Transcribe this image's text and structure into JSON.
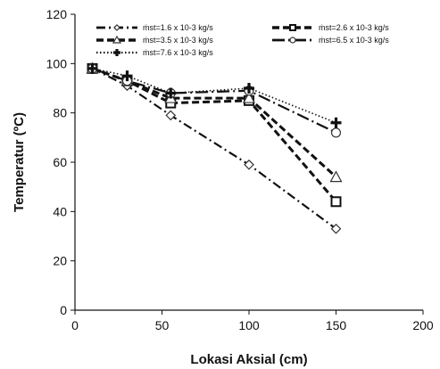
{
  "chart_data": {
    "type": "line",
    "title": "",
    "xlabel": "Lokasi Aksial (cm)",
    "ylabel": "Temperatur  (ºC)",
    "xlim": [
      0,
      200
    ],
    "ylim": [
      0,
      120
    ],
    "x_ticks": [
      0,
      50,
      100,
      150,
      200
    ],
    "y_ticks": [
      0,
      20,
      40,
      60,
      80,
      100,
      120
    ],
    "grid": false,
    "legend_position": "top",
    "series": [
      {
        "name": "ṁst=1.6 x 10-3 kg/s",
        "x": [
          10,
          30,
          55,
          100,
          150
        ],
        "y": [
          98,
          91,
          79,
          59,
          33
        ],
        "marker": "diamond",
        "line_style": "dash-dot",
        "color": "#111111"
      },
      {
        "name": "ṁst=2.6 x 10-3 kg/s",
        "x": [
          10,
          30,
          55,
          100,
          150
        ],
        "y": [
          98,
          93,
          84,
          85,
          44
        ],
        "marker": "square",
        "line_style": "dash",
        "color": "#111111"
      },
      {
        "name": "ṁst=3.5 x 10-3 kg/s",
        "x": [
          10,
          30,
          55,
          100,
          150
        ],
        "y": [
          98,
          93,
          86,
          86,
          54
        ],
        "marker": "triangle",
        "line_style": "dash",
        "color": "#111111"
      },
      {
        "name": "ṁst=6.5 x 10-3 kg/s",
        "x": [
          10,
          30,
          55,
          100,
          150
        ],
        "y": [
          98,
          93,
          88,
          89,
          72
        ],
        "marker": "circle",
        "line_style": "long-dash-dot",
        "color": "#111111"
      },
      {
        "name": "ṁst=7.6 x 10-3 kg/s",
        "x": [
          10,
          30,
          55,
          100,
          150
        ],
        "y": [
          98,
          95,
          88,
          90,
          76
        ],
        "marker": "plus",
        "line_style": "dotted",
        "color": "#111111"
      }
    ]
  }
}
